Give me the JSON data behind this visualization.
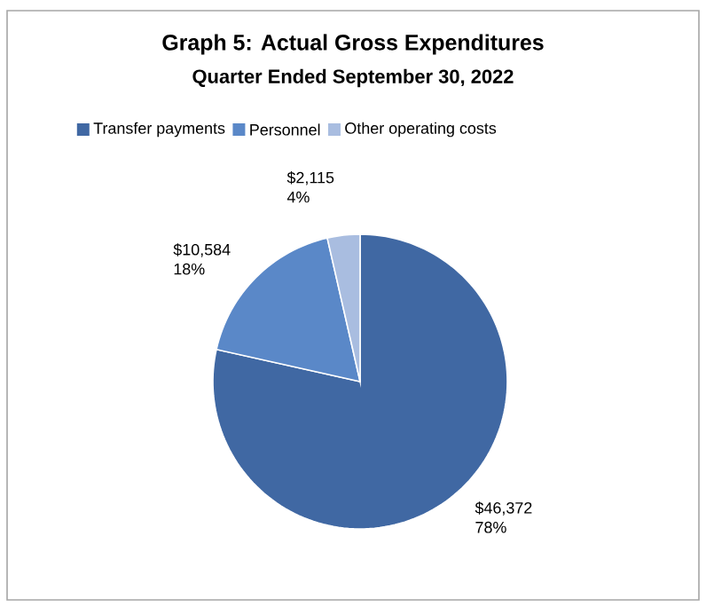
{
  "chart_data": {
    "type": "pie",
    "title": "Graph 5: Actual Gross Expenditures",
    "subtitle": "Quarter Ended September 30, 2022",
    "categories": [
      "Transfer payments",
      "Personnel",
      "Other operating costs"
    ],
    "values": [
      46372,
      10584,
      2115
    ],
    "colors": [
      "#4068a3",
      "#5a88c8",
      "#a9bde0"
    ],
    "value_labels": [
      "$46,372",
      "$10,584",
      "$2,115"
    ],
    "annotations": [
      "78%",
      "18%",
      "4%"
    ],
    "legend": "top"
  }
}
